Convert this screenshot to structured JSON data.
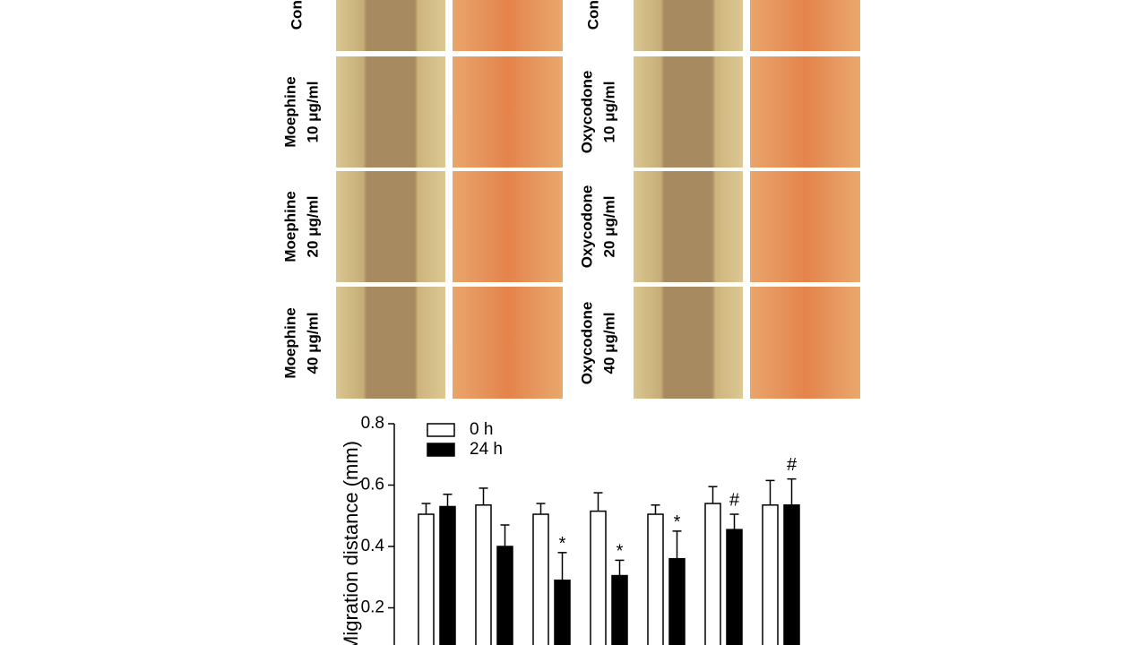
{
  "row_labels": {
    "left": [
      [
        "Control"
      ],
      [
        "Moephine",
        "10 μg/ml"
      ],
      [
        "Moephine",
        "20 μg/ml"
      ],
      [
        "Moephine",
        "40 μg/ml"
      ]
    ],
    "right": [
      [
        "Control"
      ],
      [
        "Oxycodone",
        "10 μg/ml"
      ],
      [
        "Oxycodone",
        "20 μg/ml"
      ],
      [
        "Oxycodone",
        "40 μg/ml"
      ]
    ]
  },
  "chart_data": {
    "type": "bar",
    "y_label": "Migration distance (mm)",
    "categories": [
      null,
      null,
      null,
      null,
      null,
      null,
      null
    ],
    "ylim": [
      0,
      0.8
    ],
    "yticks": [
      {
        "value": 0.2,
        "label": "0.2"
      },
      {
        "value": 0.4,
        "label": "0.4"
      },
      {
        "value": 0.6,
        "label": "0.6"
      },
      {
        "value": 0.8,
        "label": "0.8"
      }
    ],
    "series": [
      {
        "name": "0 h",
        "color": "#ffffff",
        "values": [
          0.505,
          0.535,
          0.505,
          0.515,
          0.505,
          0.54,
          0.535
        ],
        "errors": [
          0.035,
          0.055,
          0.035,
          0.06,
          0.03,
          0.055,
          0.08
        ]
      },
      {
        "name": "24 h",
        "color": "#000000",
        "values": [
          0.53,
          0.4,
          0.29,
          0.305,
          0.36,
          0.455,
          0.535
        ],
        "errors": [
          0.04,
          0.07,
          0.09,
          0.05,
          0.09,
          0.05,
          0.085
        ],
        "annotations": [
          null,
          null,
          "*",
          "*",
          "*",
          "#",
          "#"
        ]
      }
    ]
  }
}
